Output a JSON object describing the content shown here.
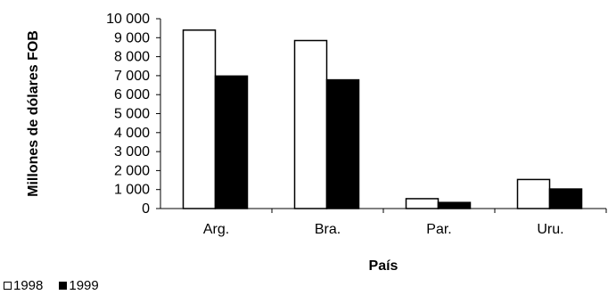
{
  "chart_data": {
    "type": "bar",
    "xlabel": "País",
    "ylabel": "Millones de dólares FOB",
    "ylim": [
      0,
      10000
    ],
    "ytick_values": [
      0,
      1000,
      2000,
      3000,
      4000,
      5000,
      6000,
      7000,
      8000,
      9000,
      10000
    ],
    "ytick_labels": [
      "0",
      "1 000",
      "2 000",
      "3 000",
      "4 000",
      "5 000",
      "6 000",
      "7 000",
      "8 000",
      "9 000",
      "10 000"
    ],
    "categories": [
      "Arg.",
      "Bra.",
      "Par.",
      "Uru."
    ],
    "series": [
      {
        "name": "1998",
        "values": [
          9400,
          8850,
          520,
          1530
        ],
        "color": "#ffffff",
        "stroke": "#000000"
      },
      {
        "name": "1999",
        "values": [
          6980,
          6780,
          320,
          1030
        ],
        "color": "#000000",
        "stroke": "#000000"
      }
    ],
    "legend_position": "bottom-left",
    "grid": false
  }
}
